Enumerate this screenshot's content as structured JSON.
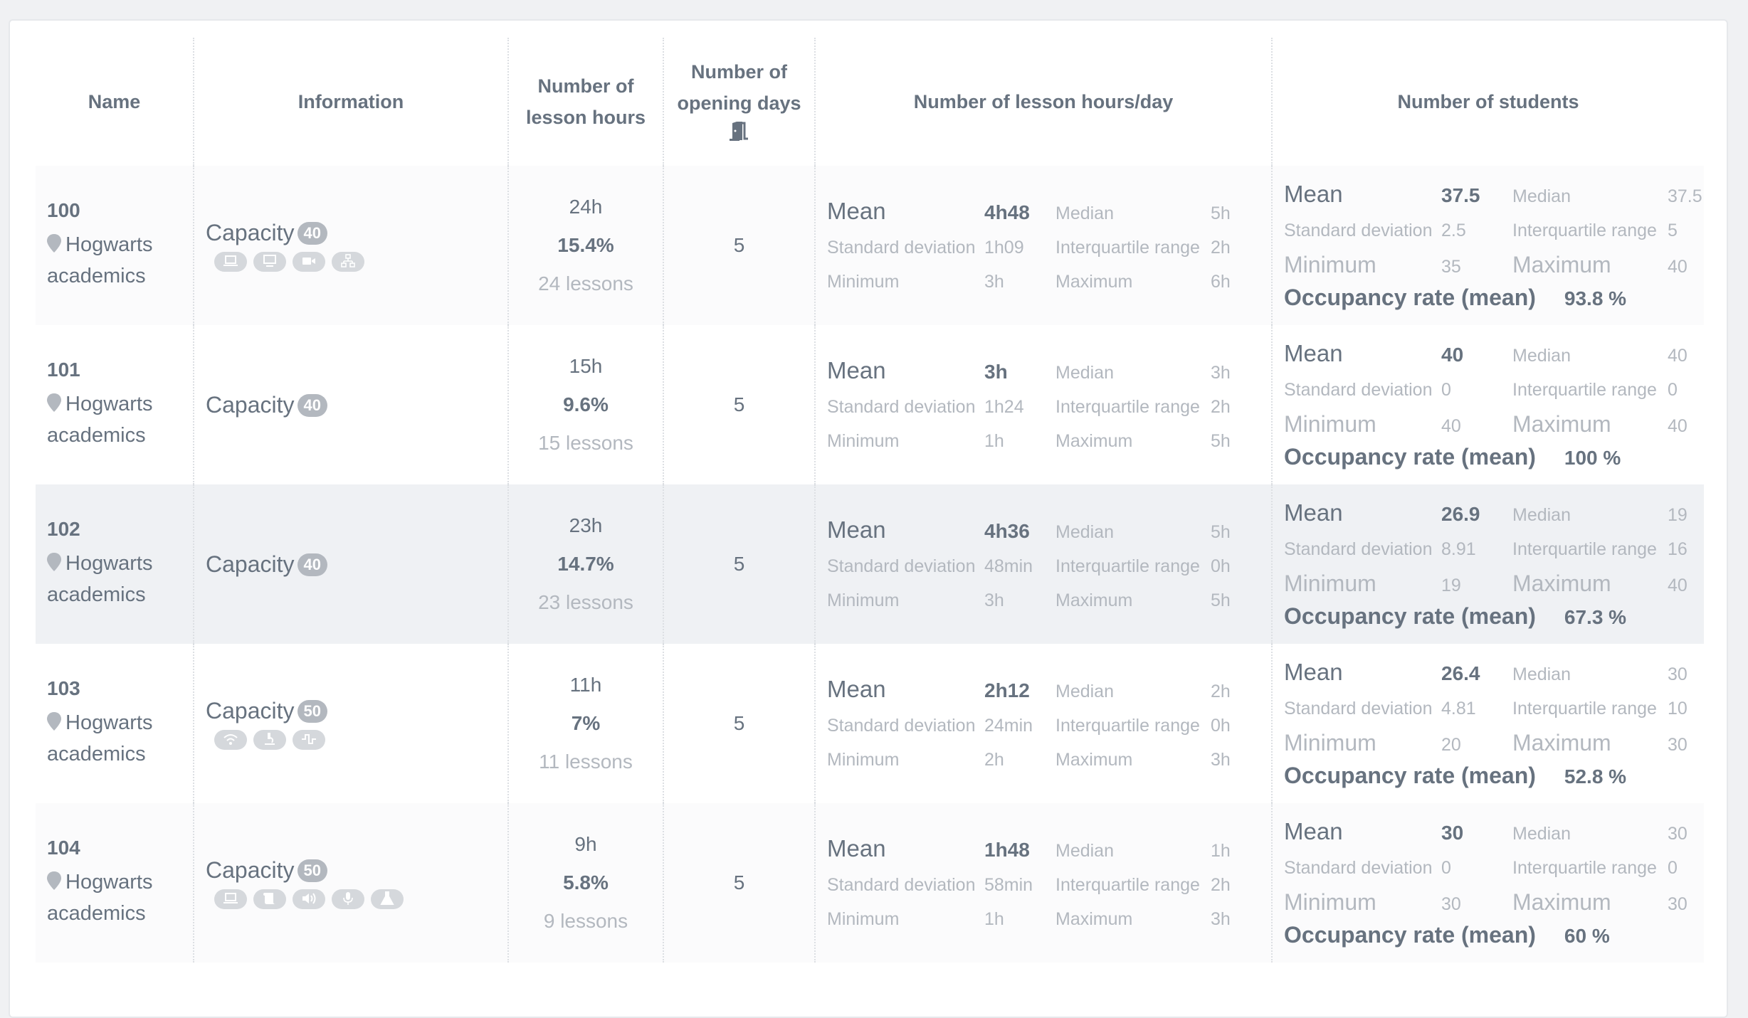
{
  "table": {
    "headers": {
      "name": "Name",
      "information": "Information",
      "lesson_hours": "Number of lesson hours",
      "opening_days": "Number of opening days",
      "opening_days_icon": "door-open-icon",
      "hours_per_day": "Number of lesson hours/day",
      "students": "Number of students"
    },
    "labels": {
      "capacity": "Capacity",
      "mean": "Mean",
      "median": "Median",
      "std": "Standard deviation",
      "iqr": "Interquartile range",
      "min": "Minimum",
      "max": "Maximum",
      "occupancy": "Occupancy rate (mean)"
    },
    "rows": [
      {
        "id": "100",
        "location": "Hogwarts academics",
        "capacity": "40",
        "equipment": [
          "laptop-icon",
          "desktop-icon",
          "video-camera-icon",
          "network-icon"
        ],
        "hours_total": "24h",
        "hours_pct": "15.4%",
        "lessons": "24 lessons",
        "opening_days": "5",
        "hpd": {
          "mean": "4h48",
          "median": "5h",
          "std": "1h09",
          "iqr": "2h",
          "min": "3h",
          "max": "6h"
        },
        "stu": {
          "mean": "37.5",
          "median": "37.5",
          "std": "2.5",
          "iqr": "5",
          "min": "35",
          "max": "40",
          "occupancy": "93.8 %"
        }
      },
      {
        "id": "101",
        "location": "Hogwarts academics",
        "capacity": "40",
        "equipment": [],
        "hours_total": "15h",
        "hours_pct": "9.6%",
        "lessons": "15 lessons",
        "opening_days": "5",
        "hpd": {
          "mean": "3h",
          "median": "3h",
          "std": "1h24",
          "iqr": "2h",
          "min": "1h",
          "max": "5h"
        },
        "stu": {
          "mean": "40",
          "median": "40",
          "std": "0",
          "iqr": "0",
          "min": "40",
          "max": "40",
          "occupancy": "100 %"
        }
      },
      {
        "id": "102",
        "location": "Hogwarts academics",
        "capacity": "40",
        "equipment": [],
        "hours_total": "23h",
        "hours_pct": "14.7%",
        "lessons": "23 lessons",
        "opening_days": "5",
        "hpd": {
          "mean": "4h36",
          "median": "5h",
          "std": "48min",
          "iqr": "0h",
          "min": "3h",
          "max": "5h"
        },
        "stu": {
          "mean": "26.9",
          "median": "19",
          "std": "8.91",
          "iqr": "16",
          "min": "19",
          "max": "40",
          "occupancy": "67.3 %"
        }
      },
      {
        "id": "103",
        "location": "Hogwarts academics",
        "capacity": "50",
        "equipment": [
          "wifi-icon",
          "microscope-icon",
          "signal-wave-icon"
        ],
        "hours_total": "11h",
        "hours_pct": "7%",
        "lessons": "11 lessons",
        "opening_days": "5",
        "hpd": {
          "mean": "2h12",
          "median": "2h",
          "std": "24min",
          "iqr": "0h",
          "min": "2h",
          "max": "3h"
        },
        "stu": {
          "mean": "26.4",
          "median": "30",
          "std": "4.81",
          "iqr": "10",
          "min": "20",
          "max": "30",
          "occupancy": "52.8 %"
        }
      },
      {
        "id": "104",
        "location": "Hogwarts academics",
        "capacity": "50",
        "equipment": [
          "laptop-icon",
          "scroll-icon",
          "speaker-icon",
          "microphone-icon",
          "flask-icon"
        ],
        "hours_total": "9h",
        "hours_pct": "5.8%",
        "lessons": "9 lessons",
        "opening_days": "5",
        "hpd": {
          "mean": "1h48",
          "median": "1h",
          "std": "58min",
          "iqr": "2h",
          "min": "1h",
          "max": "3h"
        },
        "stu": {
          "mean": "30",
          "median": "30",
          "std": "0",
          "iqr": "0",
          "min": "30",
          "max": "30",
          "occupancy": "60 %"
        }
      }
    ]
  },
  "colors": {
    "page_bg": "#f0f1f3",
    "text": "#67727f",
    "muted": "#b3b8bf",
    "badge": "#b3b8bf",
    "icon_pill": "#d5d8dc",
    "row_alt": "#fbfbfc",
    "row_highlight": "#eff1f4"
  }
}
